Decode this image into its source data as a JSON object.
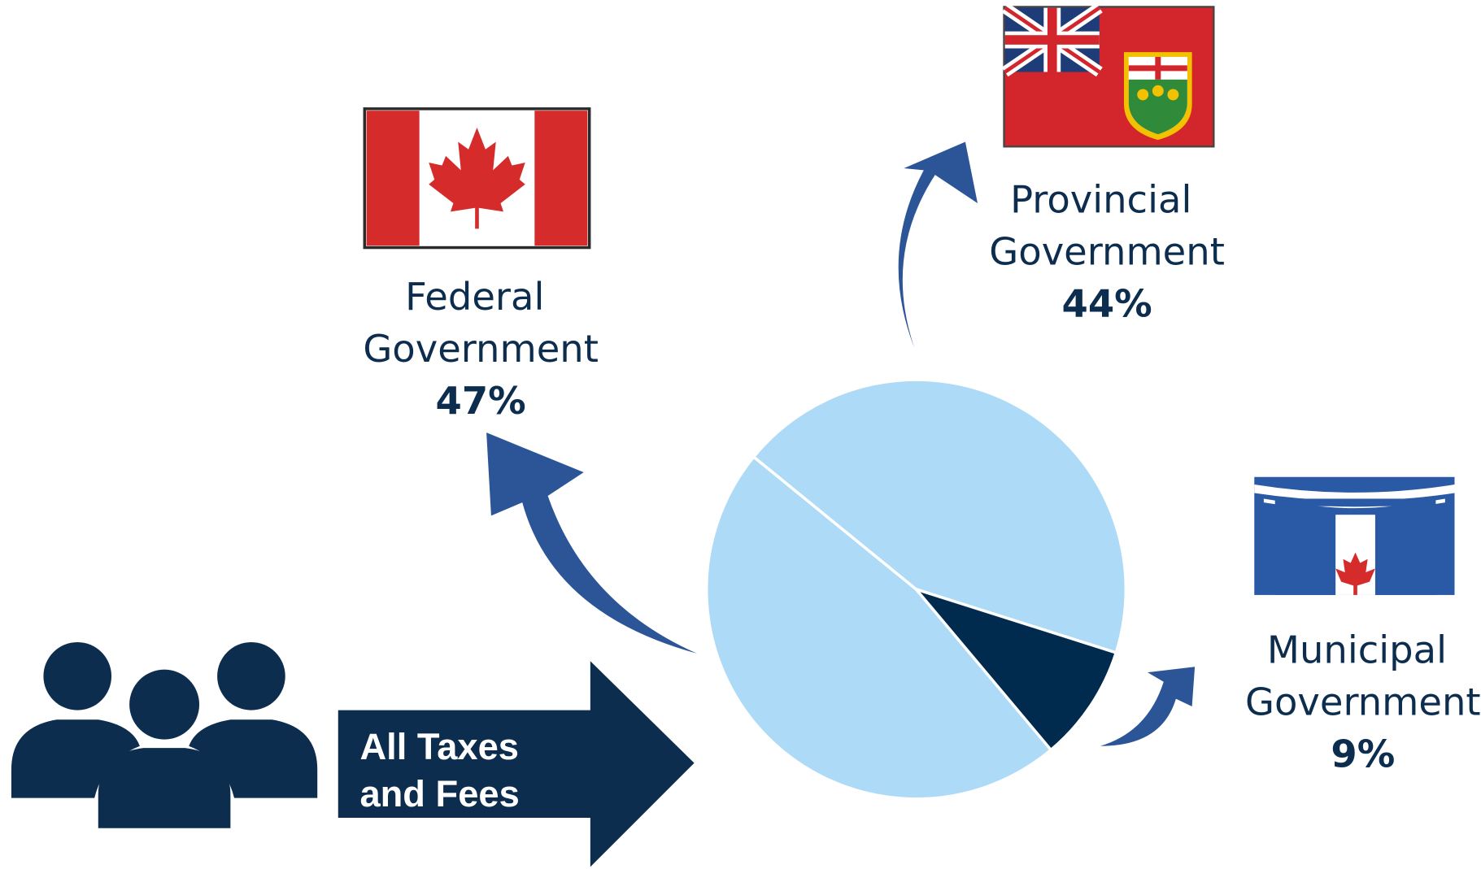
{
  "chart_data": {
    "type": "pie",
    "categories": [
      "Federal Government",
      "Provincial Government",
      "Municipal Government"
    ],
    "values": [
      47,
      44,
      9
    ],
    "value_labels": [
      "47%",
      "44%",
      "9%"
    ],
    "colors": [
      "#addaf7",
      "#addaf7",
      "#002b4f"
    ],
    "annotation": "All Taxes and Fees"
  }
}
